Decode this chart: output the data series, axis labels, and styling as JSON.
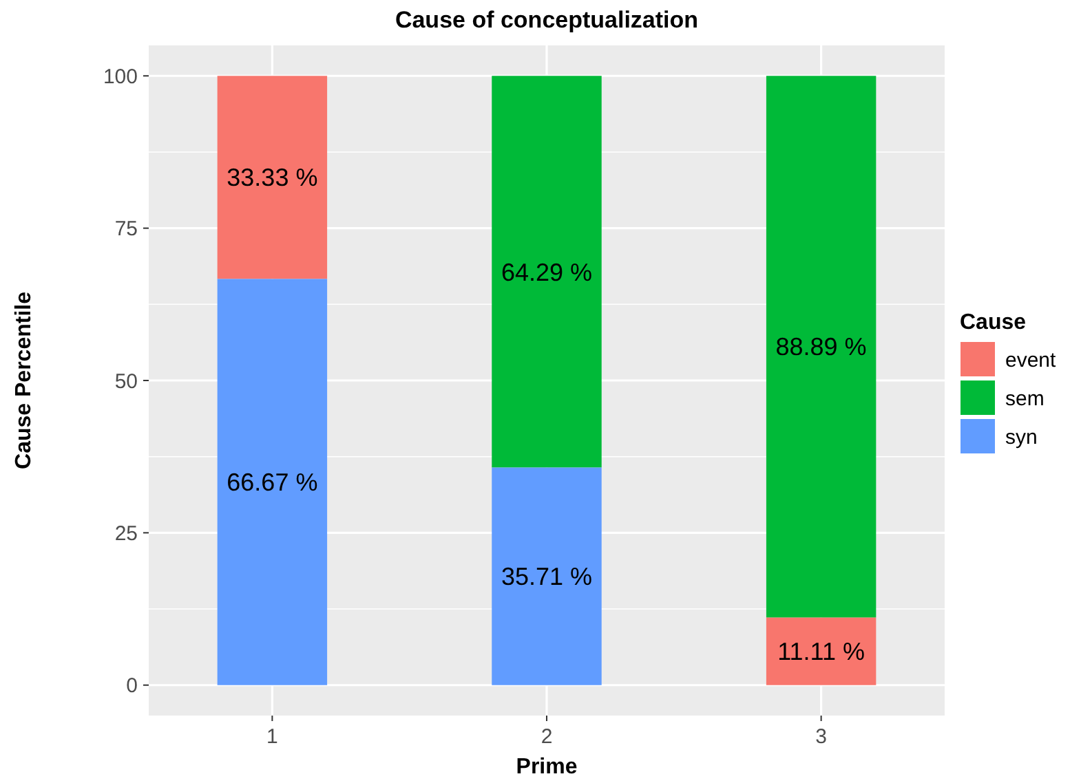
{
  "chart_data": {
    "type": "bar",
    "title": "Cause of conceptualization",
    "xlabel": "Prime",
    "ylabel": "Cause Percentile",
    "legend_title": "Cause",
    "categories": [
      "1",
      "2",
      "3"
    ],
    "series": [
      {
        "name": "event",
        "color": "#f8766d",
        "values": [
          33.33,
          null,
          11.11
        ],
        "base": [
          66.67,
          null,
          0
        ],
        "value_labels": [
          "33.33 %",
          null,
          "11.11 %"
        ]
      },
      {
        "name": "sem",
        "color": "#00ba38",
        "values": [
          null,
          64.29,
          88.89
        ],
        "base": [
          null,
          35.71,
          11.11
        ],
        "value_labels": [
          null,
          "64.29 %",
          "88.89 %"
        ]
      },
      {
        "name": "syn",
        "color": "#619cff",
        "values": [
          66.67,
          35.71,
          null
        ],
        "base": [
          0,
          0,
          null
        ],
        "value_labels": [
          "66.67 %",
          "35.71 %",
          null
        ]
      }
    ],
    "ylim": [
      -5,
      105
    ],
    "yticks": [
      0,
      25,
      50,
      75,
      100
    ],
    "grid": true,
    "legend": "right"
  }
}
